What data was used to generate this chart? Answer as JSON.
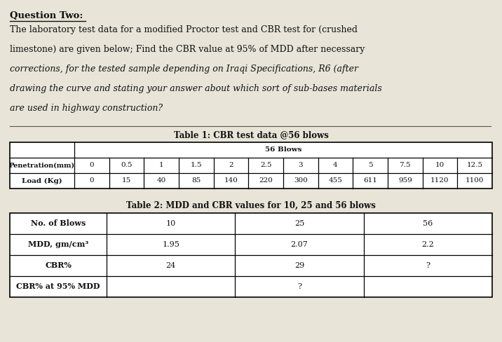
{
  "title": "Question Two:",
  "para_line1": "The laboratory test data for a modified Proctor test and CBR test for (crushed",
  "para_line2": "limestone) are given below; Find the CBR value at 95% of MDD after necessary",
  "para_line3": "corrections, for the tested sample depending on Iraqi Specifications, R6 (after",
  "para_line4": "drawing the curve and stating your answer about which sort of sub-bases materials",
  "para_line5": "are used in highway construction?",
  "table1_title": "Table 1: CBR test data @56 blows",
  "table1_subtitle": "56 Blows",
  "table1_col1_label": "Penetration(mm)",
  "table1_col2_label": "Load (Kg)",
  "table1_penetration": [
    "0",
    "0.5",
    "1",
    "1.5",
    "2",
    "2.5",
    "3",
    "4",
    "5",
    "7.5",
    "10",
    "12.5"
  ],
  "table1_load": [
    "0",
    "15",
    "40",
    "85",
    "140",
    "220",
    "300",
    "455",
    "611",
    "959",
    "1120",
    "1100"
  ],
  "table2_title": "Table 2: MDD and CBR values for 10, 25 and 56 blows",
  "table2_rows": [
    "No. of Blows",
    "MDD, gm/cm³",
    "CBR%",
    "CBR% at 95% MDD"
  ],
  "table2_col1": [
    "10",
    "1.95",
    "24",
    ""
  ],
  "table2_col2": [
    "25",
    "2.07",
    "29",
    "?"
  ],
  "table2_col3": [
    "56",
    "2.2",
    "?",
    ""
  ],
  "bg_color": "#e8e4d8",
  "text_color": "#111111",
  "title_fontsize": 9.5,
  "para_fontsize": 9.0,
  "table1_title_fontsize": 8.5,
  "table1_data_fontsize": 7.5,
  "table2_title_fontsize": 8.5,
  "table2_data_fontsize": 8.0
}
